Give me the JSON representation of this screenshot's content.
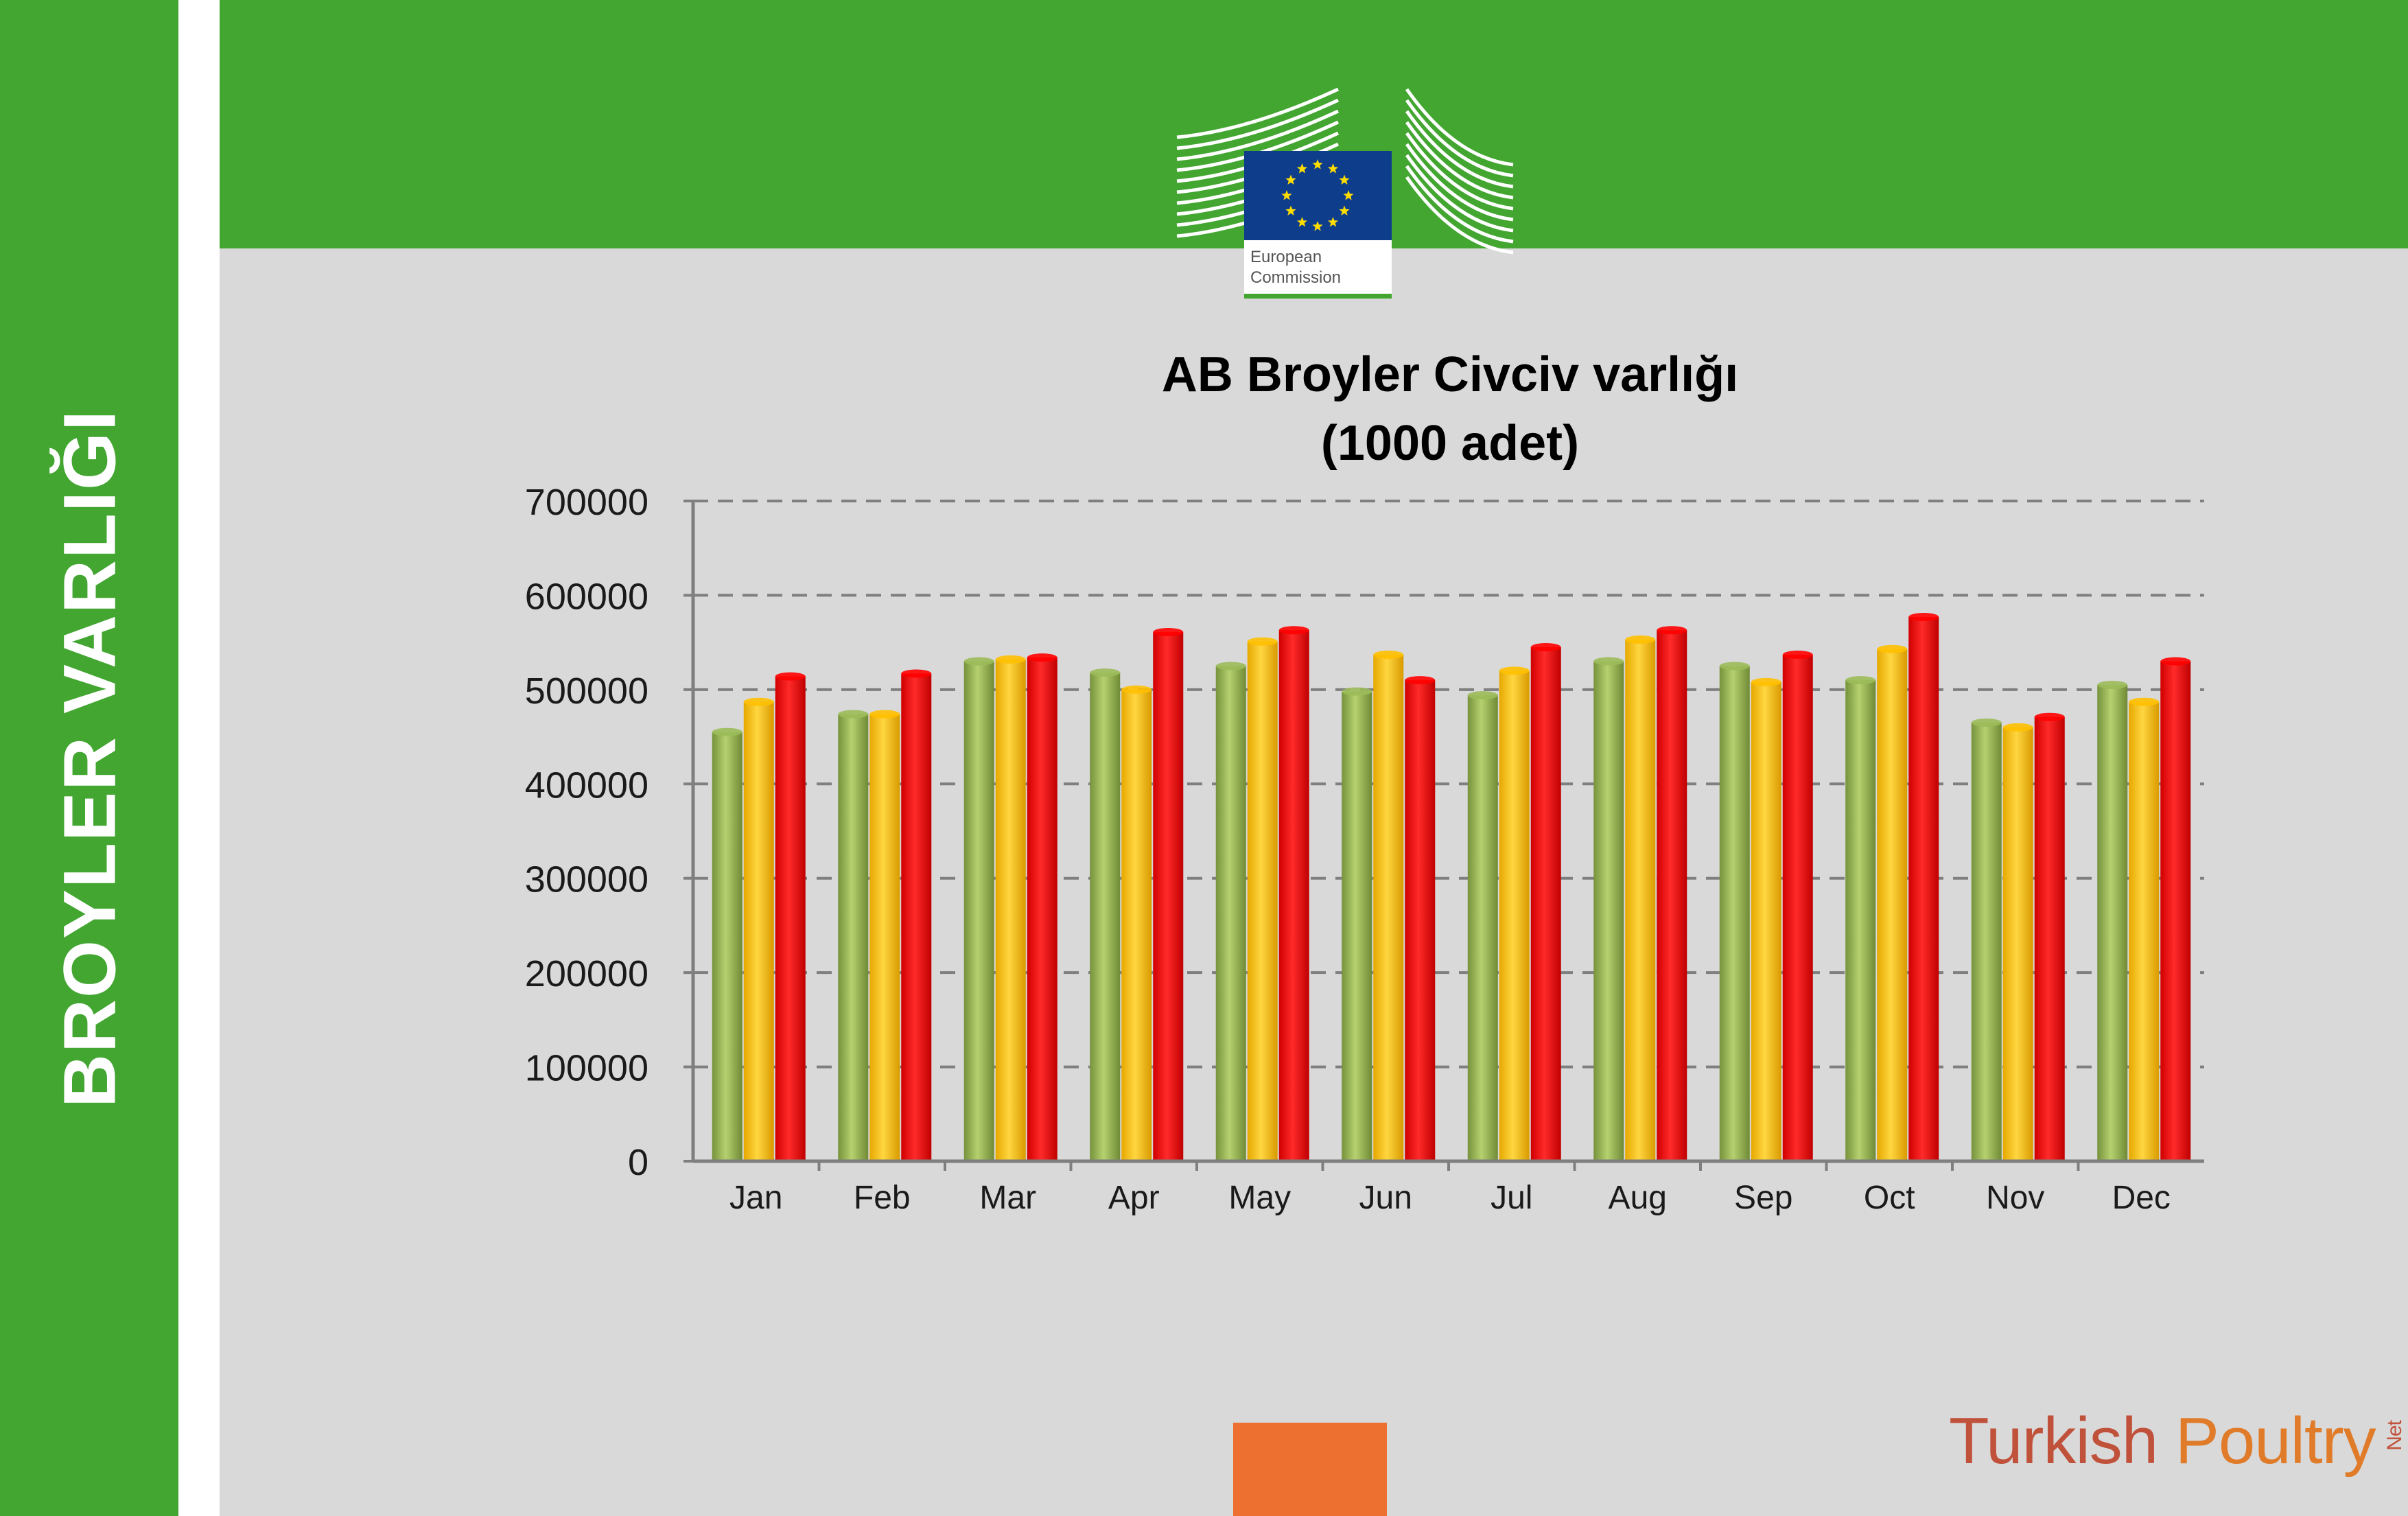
{
  "sidebar": {
    "title": "BROYLER VARLIĞI"
  },
  "logo": {
    "line1": "European",
    "line2": "Commission"
  },
  "brand": {
    "part1": "Turkish ",
    "part2": "Poultry",
    "suffix": "Net"
  },
  "colors": {
    "green": "#9bbb59",
    "yellow": "#ffc000",
    "red": "#ff0000",
    "sidebar": "#42a631",
    "orange": "#ed7031"
  },
  "chart_data": {
    "type": "bar",
    "title_line1": "AB Broyler Civciv varlığı",
    "title_line2": "(1000 adet)",
    "categories": [
      "Jan",
      "Feb",
      "Mar",
      "Apr",
      "May",
      "Jun",
      "Jul",
      "Aug",
      "Sep",
      "Oct",
      "Nov",
      "Dec"
    ],
    "series": [
      {
        "color": "green",
        "values": [
          455000,
          474000,
          530000,
          518000,
          525000,
          498000,
          494000,
          530000,
          525000,
          510000,
          465000,
          505000
        ]
      },
      {
        "color": "yellow",
        "values": [
          487000,
          474000,
          532000,
          500000,
          551000,
          537000,
          520000,
          553000,
          508000,
          543000,
          460000,
          487000
        ]
      },
      {
        "color": "red",
        "values": [
          514000,
          517000,
          534000,
          561000,
          563000,
          510000,
          545000,
          563000,
          537000,
          577000,
          471000,
          530000
        ]
      }
    ],
    "y_ticks": [
      "0",
      "100000",
      "200000",
      "300000",
      "400000",
      "500000",
      "600000",
      "700000"
    ],
    "ylim": [
      0,
      700000
    ],
    "grid": "dashed horizontal",
    "legend": "none"
  }
}
